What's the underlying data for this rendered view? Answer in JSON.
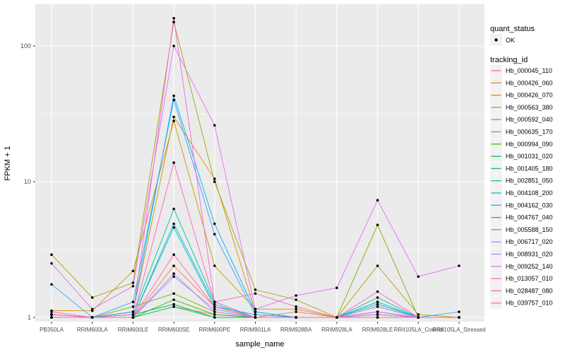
{
  "chart_data": {
    "type": "line",
    "title": "",
    "xlabel": "sample_name",
    "ylabel": "FPKM + 1",
    "log_y": true,
    "y_ticks": [
      1,
      10,
      100
    ],
    "y_minor_ticks": [
      3.162,
      31.62
    ],
    "ylim": [
      1,
      200
    ],
    "grid": true,
    "legend_position": "right",
    "point_color": "#000000",
    "categories": [
      "PB350LA",
      "RRIM600LA",
      "RRIM600LE",
      "RRIM600SE",
      "RRIM600PE",
      "RRIM901LA",
      "RRIM928BA",
      "RRIM928LA",
      "RRIM928LE",
      "RRII105LA_Control",
      "RRII105LA_Stressed"
    ],
    "series": [
      {
        "name": "Hb_000045_110",
        "color": "#F8766D",
        "values": [
          1.05,
          1.0,
          1.0,
          2.4,
          1.2,
          1.0,
          1.1,
          1.0,
          1.05,
          1.0,
          1.0
        ]
      },
      {
        "name": "Hb_000426_060",
        "color": "#EA8331",
        "values": [
          1.0,
          1.0,
          1.0,
          1.2,
          1.05,
          1.0,
          1.0,
          1.0,
          1.3,
          1.0,
          1.0
        ]
      },
      {
        "name": "Hb_000426_070",
        "color": "#D89000",
        "values": [
          1.05,
          1.0,
          1.1,
          30,
          10.5,
          1.1,
          1.0,
          1.0,
          1.0,
          1.0,
          1.0
        ]
      },
      {
        "name": "Hb_000563_380",
        "color": "#C09B00",
        "values": [
          1.12,
          1.12,
          2.2,
          28,
          2.4,
          1.15,
          1.15,
          1.0,
          2.4,
          1.05,
          1.0
        ]
      },
      {
        "name": "Hb_000592_040",
        "color": "#A3A500",
        "values": [
          2.9,
          1.4,
          1.8,
          150,
          10,
          1.6,
          1.35,
          1.0,
          1.2,
          1.0,
          1.0
        ]
      },
      {
        "name": "Hb_000635_170",
        "color": "#7CAE00",
        "values": [
          1.0,
          1.0,
          1.2,
          1.5,
          1.1,
          1.0,
          1.0,
          1.0,
          4.8,
          1.0,
          1.0
        ]
      },
      {
        "name": "Hb_000994_090",
        "color": "#39B600",
        "values": [
          1.0,
          1.0,
          1.0,
          1.35,
          1.05,
          1.0,
          1.0,
          1.0,
          1.1,
          1.0,
          1.0
        ]
      },
      {
        "name": "Hb_001031_020",
        "color": "#00BB4E",
        "values": [
          1.0,
          1.0,
          1.05,
          1.25,
          1.0,
          1.0,
          1.0,
          1.0,
          1.05,
          1.0,
          1.0
        ]
      },
      {
        "name": "Hb_001405_180",
        "color": "#00BF7D",
        "values": [
          1.0,
          1.0,
          1.0,
          1.2,
          1.0,
          1.0,
          1.0,
          1.0,
          1.0,
          1.0,
          1.0
        ]
      },
      {
        "name": "Hb_002851_050",
        "color": "#00C1A3",
        "values": [
          1.0,
          1.0,
          1.05,
          6.3,
          1.3,
          1.0,
          1.0,
          1.0,
          1.4,
          1.0,
          1.0
        ]
      },
      {
        "name": "Hb_004108_200",
        "color": "#00BFC4",
        "values": [
          1.0,
          1.0,
          1.0,
          4.9,
          1.25,
          1.0,
          1.0,
          1.0,
          1.3,
          1.0,
          1.0
        ]
      },
      {
        "name": "Hb_004162_030",
        "color": "#00BAE0",
        "values": [
          1.0,
          1.0,
          1.0,
          4.6,
          1.2,
          1.05,
          1.0,
          1.0,
          1.25,
          1.0,
          1.0
        ]
      },
      {
        "name": "Hb_004767_040",
        "color": "#00B0F6",
        "values": [
          1.05,
          1.0,
          1.1,
          43,
          4.9,
          1.1,
          1.0,
          1.0,
          1.0,
          1.0,
          1.0
        ]
      },
      {
        "name": "Hb_005588_150",
        "color": "#35A2FF",
        "values": [
          1.75,
          1.0,
          1.3,
          40,
          4.1,
          1.05,
          1.0,
          1.0,
          1.1,
          1.0,
          1.1
        ]
      },
      {
        "name": "Hb_006717_020",
        "color": "#9590FF",
        "values": [
          1.0,
          1.0,
          1.0,
          2.0,
          1.15,
          1.0,
          1.0,
          1.0,
          1.2,
          1.0,
          1.0
        ]
      },
      {
        "name": "Hb_008931_020",
        "color": "#C77CFF",
        "values": [
          1.05,
          1.0,
          1.0,
          2.1,
          1.1,
          1.0,
          1.0,
          1.0,
          1.05,
          1.0,
          1.0
        ]
      },
      {
        "name": "Hb_009252_140",
        "color": "#E76BF3",
        "values": [
          2.5,
          1.15,
          1.7,
          100,
          26,
          1.15,
          1.45,
          1.65,
          7.3,
          2.0,
          2.4
        ]
      },
      {
        "name": "Hb_013057_010",
        "color": "#FA62DB",
        "values": [
          1.0,
          1.0,
          1.05,
          160,
          1.3,
          1.0,
          1.0,
          1.0,
          1.1,
          1.0,
          1.0
        ]
      },
      {
        "name": "Hb_028487_080",
        "color": "#FF62BC",
        "values": [
          1.1,
          1.0,
          1.0,
          13.8,
          1.3,
          1.5,
          1.2,
          1.0,
          1.55,
          1.0,
          1.0
        ]
      },
      {
        "name": "Hb_039757_010",
        "color": "#FF6A98",
        "values": [
          1.05,
          1.0,
          1.0,
          2.9,
          1.2,
          1.0,
          1.0,
          1.0,
          1.0,
          1.0,
          1.0
        ]
      }
    ]
  },
  "legend": {
    "quant_status_title": "quant_status",
    "quant_items": [
      {
        "label": "OK"
      }
    ],
    "tracking_title": "tracking_id"
  },
  "theme": {
    "panel_bg": "#EBEBEB",
    "grid_color": "#FFFFFF",
    "tick_label_color": "#4D4D4D",
    "tick_mark_color": "#333333",
    "key_bg": "#F2F2F2",
    "text_color": "#000000"
  }
}
